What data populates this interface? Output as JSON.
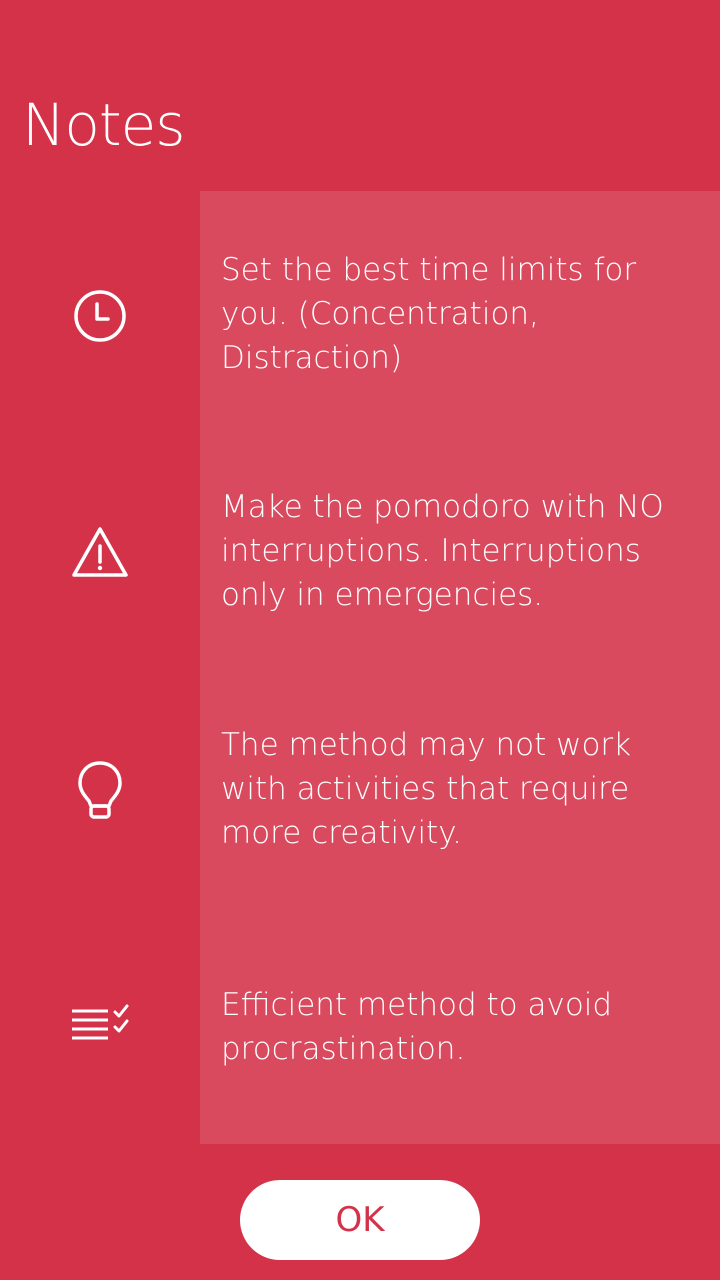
{
  "header": {
    "title": "Notes"
  },
  "notes": [
    {
      "icon": "clock-icon",
      "text": "Set the best time limits for you. (Concentration, Distraction)"
    },
    {
      "icon": "warning-icon",
      "text": "Make the pomodoro with NO interruptions. Interruptions only in emergencies."
    },
    {
      "icon": "lightbulb-icon",
      "text": "The method may not work with activities that require more creativity."
    },
    {
      "icon": "checklist-icon",
      "text": "Efficient method to avoid procrastination."
    }
  ],
  "footer": {
    "ok_label": "OK"
  },
  "colors": {
    "background": "#d43249",
    "panel": "#d94a5f",
    "text": "#ffffff",
    "button_text": "#d43249"
  }
}
